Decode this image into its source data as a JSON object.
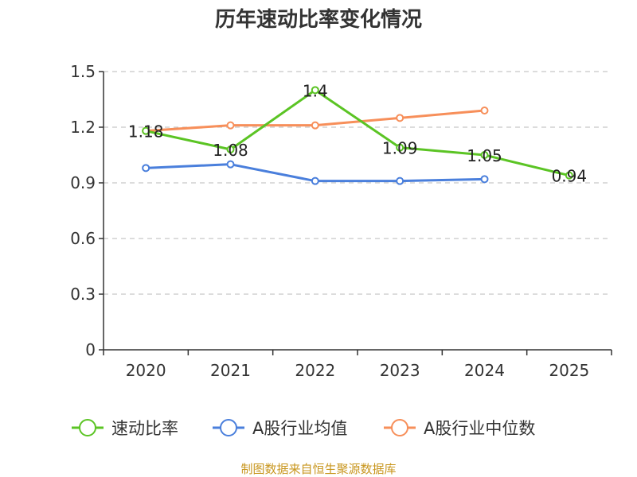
{
  "chart_data": {
    "type": "line",
    "title": "历年速动比率变化情况",
    "categories": [
      "2020",
      "2021",
      "2022",
      "2023",
      "2024",
      "2025"
    ],
    "yticks": [
      "0",
      "0.3",
      "0.6",
      "0.9",
      "1.2",
      "1.5"
    ],
    "ylim": [
      0,
      1.5
    ],
    "grid": true,
    "legend_position": "bottom",
    "series": [
      {
        "name": "速动比率",
        "color": "#5bc424",
        "values": [
          1.18,
          1.08,
          1.4,
          1.09,
          1.05,
          0.94
        ],
        "labels": [
          "1.18",
          "1.08",
          "1.4",
          "1.09",
          "1.05",
          "0.94"
        ]
      },
      {
        "name": "A股行业均值",
        "color": "#4a7fdc",
        "values": [
          0.98,
          1.0,
          0.91,
          0.91,
          0.92,
          null
        ]
      },
      {
        "name": "A股行业中位数",
        "color": "#f78f5a",
        "values": [
          1.18,
          1.21,
          1.21,
          1.25,
          1.29,
          null
        ]
      }
    ],
    "source": "制图数据来自恒生聚源数据库"
  }
}
